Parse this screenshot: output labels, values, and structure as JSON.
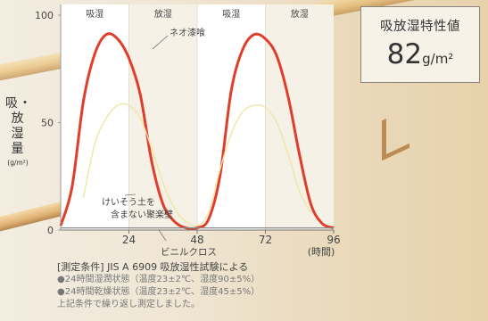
{
  "chart_data": {
    "type": "line",
    "ylabel": "吸・放湿量",
    "yunit": "(g/m²)",
    "ylim": [
      0,
      105
    ],
    "yticks": [
      0,
      50,
      100
    ],
    "xlim": [
      0,
      96
    ],
    "xticks": [
      24,
      48,
      72,
      96
    ],
    "xunit": "(時間)",
    "phases": [
      {
        "label": "吸湿",
        "from": 0,
        "to": 24
      },
      {
        "label": "放湿",
        "from": 24,
        "to": 48
      },
      {
        "label": "吸湿",
        "from": 48,
        "to": 72
      },
      {
        "label": "放湿",
        "from": 72,
        "to": 96
      }
    ],
    "series": [
      {
        "name": "ネオ漆喰",
        "color": "#e03d2a",
        "x": [
          0,
          4,
          8,
          12,
          16,
          20,
          24,
          28,
          32,
          36,
          40,
          44,
          48,
          52,
          56,
          60,
          64,
          68,
          72,
          76,
          80,
          84,
          88,
          92,
          96
        ],
        "values": [
          2,
          20,
          60,
          82,
          91,
          89,
          80,
          63,
          32,
          12,
          4,
          1,
          1,
          5,
          25,
          65,
          84,
          91,
          89,
          81,
          62,
          35,
          12,
          3,
          1
        ]
      },
      {
        "name": "けいそう土を含まない聚楽壁",
        "color": "#efe6a6",
        "x": [
          8,
          12,
          16,
          20,
          24,
          28,
          32,
          36,
          40,
          44,
          48,
          52,
          56,
          60,
          64,
          68,
          72,
          76,
          80,
          84,
          88
        ],
        "values": [
          15,
          40,
          52,
          58,
          58,
          52,
          38,
          22,
          10,
          4,
          2,
          8,
          28,
          45,
          55,
          58,
          57,
          50,
          35,
          18,
          8
        ]
      },
      {
        "name": "ビニルクロス",
        "color": "#8b8b8b",
        "x": [
          0,
          96
        ],
        "values": [
          1,
          1
        ]
      }
    ]
  },
  "stat": {
    "title": "吸放湿特性値",
    "value": "82",
    "unit": "g/m²"
  },
  "conditions": {
    "title": "[測定条件] JIS A 6909 吸放湿性試験による",
    "line1": "●24時間湿潤状態（温度23±2℃、湿度90±5%）",
    "line2": "●24時間乾燥状態（温度23±2℃、湿度45±5%）",
    "line3": "上記条件で繰り返し測定しました。"
  }
}
